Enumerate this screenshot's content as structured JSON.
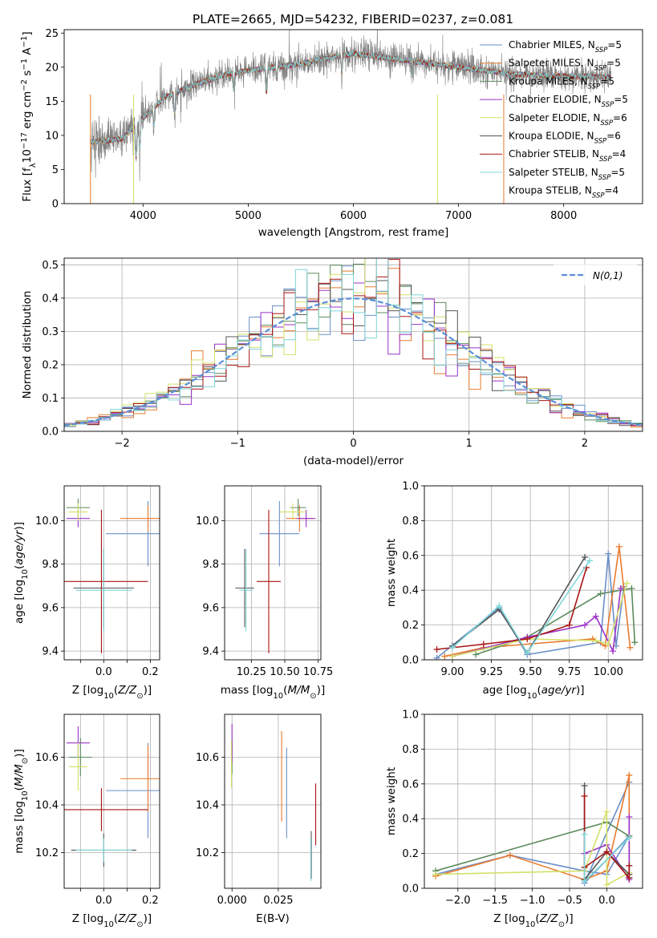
{
  "title": "PLATE=2665, MJD=54232, FIBERID=0237, z=0.081",
  "colors": [
    "#6a8fc8",
    "#e87a2f",
    "#5c8a5c",
    "#9b33c7",
    "#d4e06a",
    "#555555",
    "#a81515",
    "#7fd6d9"
  ],
  "chart_data": [
    {
      "type": "line",
      "id": "spectrum",
      "xlabel": "wavelength [Angstrom, rest frame]",
      "ylabel": "Flux [f_λ10^-17 erg cm^-2 s^-1 A^-1]",
      "xlim": [
        3250,
        8750
      ],
      "ylim": [
        0,
        25.5
      ],
      "xticks": [
        4000,
        5000,
        6000,
        7000,
        8000
      ],
      "yticks": [
        0,
        5,
        10,
        15,
        20,
        25
      ],
      "wave_range": [
        3500,
        8450
      ],
      "continuum": [
        [
          3500,
          9
        ],
        [
          3800,
          9.5
        ],
        [
          4000,
          12.5
        ],
        [
          4200,
          15.5
        ],
        [
          4500,
          17.5
        ],
        [
          4800,
          19
        ],
        [
          5000,
          19.5
        ],
        [
          5500,
          20.5
        ],
        [
          5800,
          21.5
        ],
        [
          6000,
          22
        ],
        [
          6500,
          21
        ],
        [
          7000,
          20
        ],
        [
          7500,
          19
        ],
        [
          8000,
          18.7
        ],
        [
          8450,
          18.5
        ]
      ],
      "legend": [
        {
          "name": "Chabrier MILES",
          "sub": "SSP",
          "n": "5"
        },
        {
          "name": "Salpeter MILES",
          "sub": "SSP",
          "n": "5"
        },
        {
          "name": "Kroupa MILES",
          "sub": "SSP",
          "n": "5"
        },
        {
          "name": "Chabrier ELODIE",
          "sub": "SSP",
          "n": "5"
        },
        {
          "name": "Salpeter ELODIE",
          "sub": "SSP",
          "n": "6"
        },
        {
          "name": "Kroupa ELODIE",
          "sub": "SSP",
          "n": "6"
        },
        {
          "name": "Chabrier STELIB",
          "sub": "SSP",
          "n": "4"
        },
        {
          "name": "Salpeter STELIB",
          "sub": "SSP",
          "n": "5"
        },
        {
          "name": "Kroupa STELIB",
          "sub": "SSP",
          "n": "4"
        }
      ]
    },
    {
      "type": "step",
      "id": "residuals",
      "xlabel": "(data-model)/error",
      "ylabel": "Normed distribution",
      "xlim": [
        -2.5,
        2.5
      ],
      "ylim": [
        0,
        0.52
      ],
      "xticks": [
        -2,
        -1,
        0,
        1,
        2
      ],
      "yticks": [
        0.0,
        0.1,
        0.2,
        0.3,
        0.4,
        0.5
      ],
      "bin_width": 0.1,
      "gaussian_label": "N(0,1)",
      "gaussian_color": "#5b8fd8"
    },
    {
      "type": "errorbar",
      "id": "z-age",
      "xlabel": "Z [log10(Z/Z⊙)]",
      "ylabel": "age [log10(age/yr)]",
      "xlim": [
        -0.17,
        0.24
      ],
      "ylim": [
        9.36,
        10.16
      ],
      "xticks": [
        -0.1,
        0.0,
        0.1,
        0.2
      ],
      "xticklabels": [
        "",
        "0.0",
        "",
        "0.2"
      ],
      "yticks": [
        9.4,
        9.6,
        9.8,
        10.0
      ],
      "points": [
        {
          "x": 0.19,
          "xerr": 0.18,
          "y": 9.94,
          "yerr": 0.15
        },
        {
          "x": 0.19,
          "xerr": 0.12,
          "y": 10.01,
          "yerr": 0.06
        },
        {
          "x": -0.11,
          "xerr": 0.05,
          "y": 10.06,
          "yerr": 0.04
        },
        {
          "x": -0.11,
          "xerr": 0.05,
          "y": 10.01,
          "yerr": 0.04
        },
        {
          "x": -0.11,
          "xerr": 0.04,
          "y": 10.04,
          "yerr": 0.04
        },
        {
          "x": 0.0,
          "xerr": 0.13,
          "y": 9.69,
          "yerr": 0.18
        },
        {
          "x": -0.01,
          "xerr": 0.2,
          "y": 9.72,
          "yerr": 0.33
        },
        {
          "x": 0.0,
          "xerr": 0.12,
          "y": 9.68,
          "yerr": 0.19
        }
      ]
    },
    {
      "type": "errorbar",
      "id": "mass-age",
      "xlabel": "mass [log10(M/M⊙)]",
      "ylabel": "",
      "xlim": [
        10.05,
        10.77
      ],
      "ylim": [
        9.36,
        10.16
      ],
      "xticks": [
        10.25,
        10.5,
        10.75
      ],
      "xticklabels": [
        "10.25",
        "10.50",
        "10.75"
      ],
      "yticks": [
        9.4,
        9.6,
        9.8,
        10.0
      ],
      "points": [
        {
          "x": 10.46,
          "xerr": 0.15,
          "y": 9.94,
          "yerr": 0.15
        },
        {
          "x": 10.61,
          "xerr": 0.1,
          "y": 10.01,
          "yerr": 0.06
        },
        {
          "x": 10.6,
          "xerr": 0.06,
          "y": 10.06,
          "yerr": 0.04
        },
        {
          "x": 10.66,
          "xerr": 0.07,
          "y": 10.01,
          "yerr": 0.04
        },
        {
          "x": 10.56,
          "xerr": 0.1,
          "y": 10.04,
          "yerr": 0.04
        },
        {
          "x": 10.2,
          "xerr": 0.07,
          "y": 9.69,
          "yerr": 0.18
        },
        {
          "x": 10.38,
          "xerr": 0.09,
          "y": 9.72,
          "yerr": 0.33
        },
        {
          "x": 10.21,
          "xerr": 0.05,
          "y": 9.68,
          "yerr": 0.19
        }
      ]
    },
    {
      "type": "line",
      "id": "age-weight",
      "xlabel": "age [log10(age/yr)]",
      "ylabel": "mass weight",
      "xlim": [
        8.82,
        10.22
      ],
      "ylim": [
        0,
        1.0
      ],
      "xticks": [
        9.0,
        9.25,
        9.5,
        9.75,
        10.0
      ],
      "xticklabels": [
        "9.00",
        "9.25",
        "9.50",
        "9.75",
        "10.00"
      ],
      "yticks": [
        0.0,
        0.2,
        0.4,
        0.6,
        0.8,
        1.0
      ],
      "series": [
        {
          "x": [
            8.9,
            9.3,
            9.48,
            9.95,
            10.0,
            10.05,
            10.1
          ],
          "y": [
            0.01,
            0.3,
            0.03,
            0.1,
            0.61,
            0.08,
            0.42
          ]
        },
        {
          "x": [
            8.95,
            9.2,
            9.9,
            9.98,
            10.07,
            10.14
          ],
          "y": [
            0.02,
            0.07,
            0.12,
            0.08,
            0.65,
            0.07
          ]
        },
        {
          "x": [
            9.15,
            9.48,
            9.95,
            10.15,
            10.17
          ],
          "y": [
            0.03,
            0.13,
            0.38,
            0.41,
            0.1
          ]
        },
        {
          "x": [
            9.0,
            9.48,
            9.85,
            9.92,
            10.03,
            10.08
          ],
          "y": [
            0.02,
            0.13,
            0.2,
            0.25,
            0.05,
            0.41
          ]
        },
        {
          "x": [
            9.0,
            9.48,
            9.92,
            10.0,
            10.12
          ],
          "y": [
            0.02,
            0.12,
            0.11,
            0.09,
            0.44
          ]
        },
        {
          "x": [
            9.0,
            9.3,
            9.48,
            9.85
          ],
          "y": [
            0.08,
            0.29,
            0.04,
            0.59
          ]
        },
        {
          "x": [
            8.9,
            9.2,
            9.48,
            9.75,
            9.86
          ],
          "y": [
            0.06,
            0.09,
            0.12,
            0.2,
            0.53
          ]
        },
        {
          "x": [
            9.0,
            9.3,
            9.48,
            9.88
          ],
          "y": [
            0.07,
            0.31,
            0.04,
            0.57
          ]
        }
      ]
    },
    {
      "type": "errorbar",
      "id": "z-mass",
      "xlabel": "Z [log10(Z/Z⊙)]",
      "ylabel": "mass [log10(M/M⊙)]",
      "xlim": [
        -0.17,
        0.24
      ],
      "ylim": [
        10.05,
        10.78
      ],
      "xticks": [
        -0.1,
        0.0,
        0.1,
        0.2
      ],
      "xticklabels": [
        "",
        "0.0",
        "",
        "0.2"
      ],
      "yticks": [
        10.2,
        10.4,
        10.6
      ],
      "points": [
        {
          "x": 0.19,
          "xerr": 0.18,
          "y": 10.46,
          "yerr": 0.2
        },
        {
          "x": 0.19,
          "xerr": 0.12,
          "y": 10.51,
          "yerr": 0.14
        },
        {
          "x": -0.1,
          "xerr": 0.05,
          "y": 10.6,
          "yerr": 0.08
        },
        {
          "x": -0.11,
          "xerr": 0.05,
          "y": 10.66,
          "yerr": 0.07
        },
        {
          "x": -0.11,
          "xerr": 0.04,
          "y": 10.56,
          "yerr": 0.1
        },
        {
          "x": 0.0,
          "xerr": 0.14,
          "y": 10.21,
          "yerr": 0.07
        },
        {
          "x": -0.01,
          "xerr": 0.2,
          "y": 10.38,
          "yerr": 0.09
        },
        {
          "x": 0.0,
          "xerr": 0.12,
          "y": 10.21,
          "yerr": 0.05
        }
      ]
    },
    {
      "type": "errorbar",
      "id": "ebv-mass",
      "xlabel": "E(B-V)",
      "ylabel": "",
      "xlim": [
        -0.004,
        0.048
      ],
      "ylim": [
        10.05,
        10.78
      ],
      "xticks": [
        0.0,
        0.025
      ],
      "xticklabels": [
        "0.000",
        "0.025"
      ],
      "yticks": [
        10.2,
        10.4,
        10.6
      ],
      "points": [
        {
          "x": 0.0295,
          "xerr": 0,
          "y": 10.45,
          "yerr": 0.19
        },
        {
          "x": 0.0268,
          "xerr": 0,
          "y": 10.52,
          "yerr": 0.19
        },
        {
          "x": 0.0,
          "xerr": 0,
          "y": 10.6,
          "yerr": 0.07
        },
        {
          "x": 0.0,
          "xerr": 0,
          "y": 10.66,
          "yerr": 0.08
        },
        {
          "x": -0.0003,
          "xerr": 0,
          "y": 10.57,
          "yerr": 0.1
        },
        {
          "x": 0.0428,
          "xerr": 0,
          "y": 10.19,
          "yerr": 0.1
        },
        {
          "x": 0.0452,
          "xerr": 0,
          "y": 10.36,
          "yerr": 0.13
        },
        {
          "x": 0.0425,
          "xerr": 0,
          "y": 10.17,
          "yerr": 0.09
        }
      ]
    },
    {
      "type": "line",
      "id": "z-weight",
      "xlabel": "Z [log10(Z/Z⊙)]",
      "ylabel": "mass weight",
      "xlim": [
        -2.45,
        0.48
      ],
      "ylim": [
        0,
        1.0
      ],
      "xticks": [
        -2.0,
        -1.5,
        -1.0,
        -0.5,
        0.0
      ],
      "xticklabels": [
        "−2.0",
        "−1.5",
        "−1.0",
        "−0.5",
        "0.0"
      ],
      "yticks": [
        0.0,
        0.2,
        0.4,
        0.6,
        0.8,
        1.0
      ],
      "series": [
        {
          "x": [
            -2.3,
            -1.3,
            -0.3,
            0.0,
            0.3,
            -0.3,
            0.3
          ],
          "y": [
            0.08,
            0.19,
            0.1,
            0.08,
            0.3,
            0.03,
            0.61
          ]
        },
        {
          "x": [
            -2.3,
            -1.3,
            -0.3,
            0.0,
            0.3,
            0.3
          ],
          "y": [
            0.07,
            0.19,
            0.05,
            0.1,
            0.65,
            0.08
          ]
        },
        {
          "x": [
            -2.3,
            0.0,
            0.3,
            0.3
          ],
          "y": [
            0.1,
            0.38,
            0.3,
            0.06
          ]
        },
        {
          "x": [
            -0.3,
            0.0,
            0.3,
            0.3
          ],
          "y": [
            0.2,
            0.25,
            0.05,
            0.41
          ]
        },
        {
          "x": [
            -2.3,
            -0.3,
            0.0,
            0.0,
            0.3
          ],
          "y": [
            0.08,
            0.1,
            0.44,
            0.02,
            0.09
          ]
        },
        {
          "x": [
            -0.3,
            -0.3,
            0.0,
            0.3
          ],
          "y": [
            0.59,
            0.05,
            0.21,
            0.08
          ]
        },
        {
          "x": [
            -0.3,
            -0.3,
            0.0,
            0.3,
            0.3
          ],
          "y": [
            0.53,
            0.12,
            0.21,
            0.06,
            0.13
          ]
        },
        {
          "x": [
            -0.3,
            -0.3,
            0.3
          ],
          "y": [
            0.31,
            0.04,
            0.29
          ]
        }
      ]
    }
  ]
}
